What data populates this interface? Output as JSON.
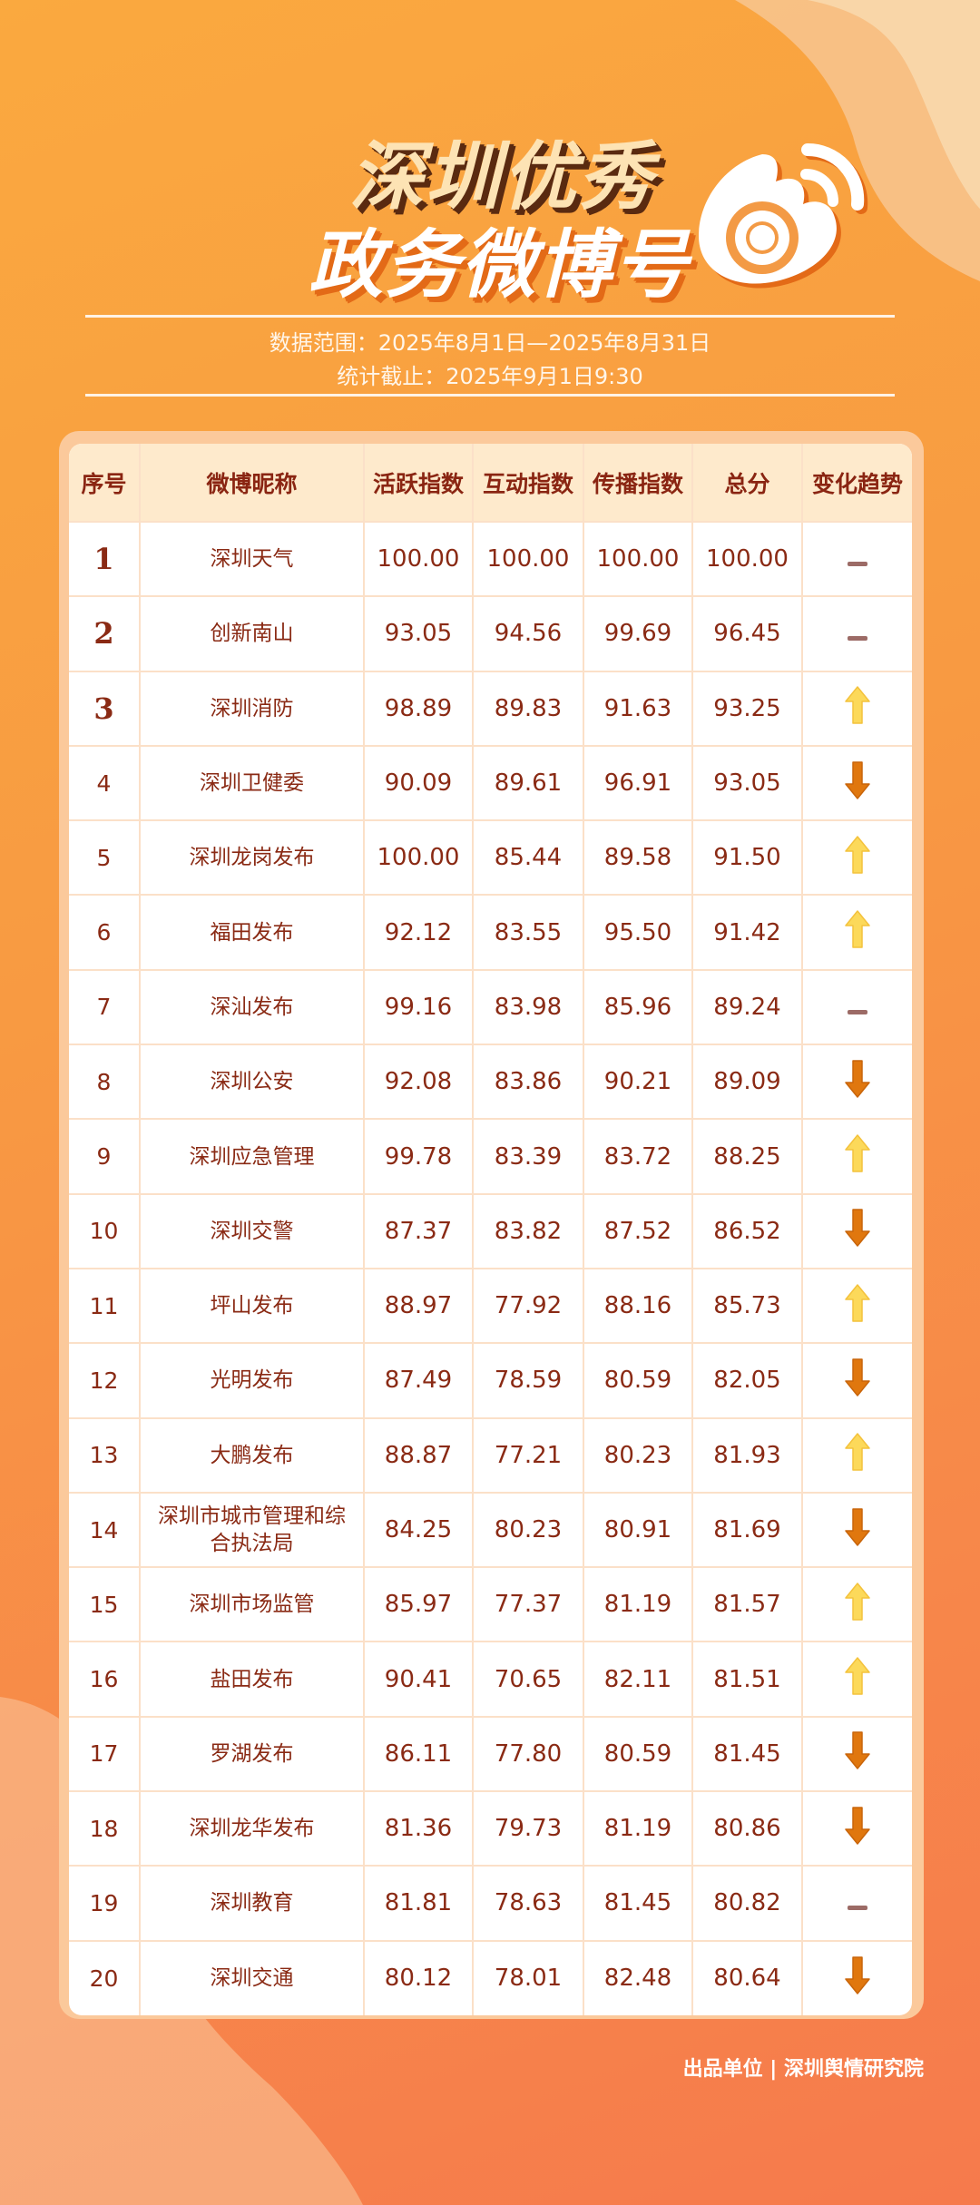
{
  "header": {
    "title_line1": "深圳优秀",
    "title_line2": "政务微博号",
    "logo": "weibo-logo",
    "data_range": "数据范围：2025年8月1日—2025年8月31日",
    "cutoff": "统计截止：2025年9月1日9:30"
  },
  "colors": {
    "accent": "#f89a42",
    "text": "#8a2a14",
    "header_bg": "#feeacc",
    "up": "#fcd95a",
    "down": "#e0770e",
    "same": "#9c6b66"
  },
  "table": {
    "columns": [
      "序号",
      "微博昵称",
      "活跃指数",
      "互动指数",
      "传播指数",
      "总分",
      "变化趋势"
    ],
    "rows": [
      [
        "1",
        "深圳天气",
        "100.00",
        "100.00",
        "100.00",
        "100.00",
        "same"
      ],
      [
        "2",
        "创新南山",
        "93.05",
        "94.56",
        "99.69",
        "96.45",
        "same"
      ],
      [
        "3",
        "深圳消防",
        "98.89",
        "89.83",
        "91.63",
        "93.25",
        "up"
      ],
      [
        "4",
        "深圳卫健委",
        "90.09",
        "89.61",
        "96.91",
        "93.05",
        "down"
      ],
      [
        "5",
        "深圳龙岗发布",
        "100.00",
        "85.44",
        "89.58",
        "91.50",
        "up"
      ],
      [
        "6",
        "福田发布",
        "92.12",
        "83.55",
        "95.50",
        "91.42",
        "up"
      ],
      [
        "7",
        "深汕发布",
        "99.16",
        "83.98",
        "85.96",
        "89.24",
        "same"
      ],
      [
        "8",
        "深圳公安",
        "92.08",
        "83.86",
        "90.21",
        "89.09",
        "down"
      ],
      [
        "9",
        "深圳应急管理",
        "99.78",
        "83.39",
        "83.72",
        "88.25",
        "up"
      ],
      [
        "10",
        "深圳交警",
        "87.37",
        "83.82",
        "87.52",
        "86.52",
        "down"
      ],
      [
        "11",
        "坪山发布",
        "88.97",
        "77.92",
        "88.16",
        "85.73",
        "up"
      ],
      [
        "12",
        "光明发布",
        "87.49",
        "78.59",
        "80.59",
        "82.05",
        "down"
      ],
      [
        "13",
        "大鹏发布",
        "88.87",
        "77.21",
        "80.23",
        "81.93",
        "up"
      ],
      [
        "14",
        "深圳市城市管理和综合执法局",
        "84.25",
        "80.23",
        "80.91",
        "81.69",
        "down"
      ],
      [
        "15",
        "深圳市场监管",
        "85.97",
        "77.37",
        "81.19",
        "81.57",
        "up"
      ],
      [
        "16",
        "盐田发布",
        "90.41",
        "70.65",
        "82.11",
        "81.51",
        "up"
      ],
      [
        "17",
        "罗湖发布",
        "86.11",
        "77.80",
        "80.59",
        "81.45",
        "down"
      ],
      [
        "18",
        "深圳龙华发布",
        "81.36",
        "79.73",
        "81.19",
        "80.86",
        "down"
      ],
      [
        "19",
        "深圳教育",
        "81.81",
        "78.63",
        "81.45",
        "80.82",
        "same"
      ],
      [
        "20",
        "深圳交通",
        "80.12",
        "78.01",
        "82.48",
        "80.64",
        "down"
      ]
    ]
  },
  "footer": {
    "text": "出品单位 | 深圳舆情研究院"
  }
}
